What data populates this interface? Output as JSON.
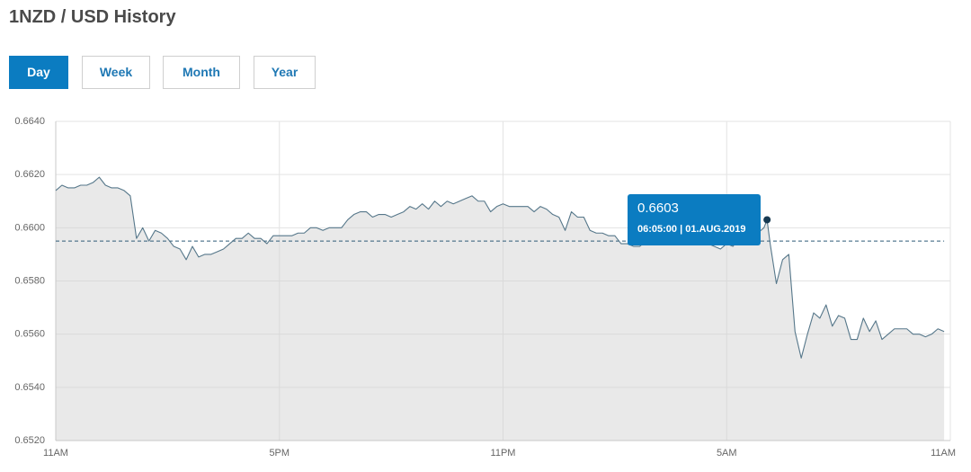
{
  "title": "1NZD / USD History",
  "tabs": [
    {
      "label": "Day",
      "active": true
    },
    {
      "label": "Week",
      "active": false
    },
    {
      "label": "Month",
      "active": false
    },
    {
      "label": "Year",
      "active": false
    }
  ],
  "colors": {
    "accent": "#0b7cc1",
    "tab_text": "#1f78b4",
    "line": "#56778a",
    "area": "#cfcfcf",
    "reference_line": "#2f5b78",
    "marker": "#173a52",
    "grid": "#e3e3e3",
    "axis": "#c9c9c9",
    "tick_text": "#666666"
  },
  "chart_data": {
    "type": "area",
    "grid": true,
    "ylim": [
      0.652,
      0.664
    ],
    "y_ticks": [
      {
        "value": 0.664,
        "label": "0.6640"
      },
      {
        "value": 0.662,
        "label": "0.6620"
      },
      {
        "value": 0.66,
        "label": "0.6600"
      },
      {
        "value": 0.658,
        "label": "0.6580"
      },
      {
        "value": 0.656,
        "label": "0.6560"
      },
      {
        "value": 0.654,
        "label": "0.6540"
      },
      {
        "value": 0.652,
        "label": "0.6520"
      }
    ],
    "x_ticks": [
      {
        "value": "11:00",
        "label": "11AM"
      },
      {
        "value": "17:00",
        "label": "5PM"
      },
      {
        "value": "23:00",
        "label": "11PM"
      },
      {
        "value": "05:00",
        "label": "5AM"
      },
      {
        "value": "11:00",
        "label": "11AM"
      }
    ],
    "x": [
      "11:00",
      "11:10",
      "11:20",
      "11:30",
      "11:40",
      "11:50",
      "12:00",
      "12:10",
      "12:20",
      "12:30",
      "12:40",
      "12:50",
      "13:00",
      "13:10",
      "13:20",
      "13:30",
      "13:40",
      "13:50",
      "14:00",
      "14:10",
      "14:20",
      "14:30",
      "14:40",
      "14:50",
      "15:00",
      "15:10",
      "15:20",
      "15:30",
      "15:40",
      "15:50",
      "16:00",
      "16:10",
      "16:20",
      "16:30",
      "16:40",
      "16:50",
      "17:00",
      "17:10",
      "17:20",
      "17:30",
      "17:40",
      "17:50",
      "18:00",
      "18:10",
      "18:20",
      "18:30",
      "18:40",
      "18:50",
      "19:00",
      "19:10",
      "19:20",
      "19:30",
      "19:40",
      "19:50",
      "20:00",
      "20:10",
      "20:20",
      "20:30",
      "20:40",
      "20:50",
      "21:00",
      "21:10",
      "21:20",
      "21:30",
      "21:40",
      "21:50",
      "22:00",
      "22:10",
      "22:20",
      "22:30",
      "22:40",
      "22:50",
      "23:00",
      "23:10",
      "23:20",
      "23:30",
      "23:40",
      "23:50",
      "00:00",
      "00:10",
      "00:20",
      "00:30",
      "00:40",
      "00:50",
      "01:00",
      "01:10",
      "01:20",
      "01:30",
      "01:40",
      "01:50",
      "02:00",
      "02:10",
      "02:20",
      "02:30",
      "02:40",
      "02:50",
      "03:00",
      "03:10",
      "03:20",
      "03:30",
      "03:40",
      "03:50",
      "04:00",
      "04:10",
      "04:20",
      "04:30",
      "04:40",
      "04:50",
      "05:00",
      "05:10",
      "05:20",
      "05:30",
      "05:40",
      "05:50",
      "06:00",
      "06:05",
      "06:10",
      "06:20",
      "06:30",
      "06:40",
      "06:50",
      "07:00",
      "07:10",
      "07:20",
      "07:30",
      "07:40",
      "07:50",
      "08:00",
      "08:10",
      "08:20",
      "08:30",
      "08:40",
      "08:50",
      "09:00",
      "09:10",
      "09:20",
      "09:30",
      "09:40",
      "09:50",
      "10:00",
      "10:10",
      "10:20",
      "10:30",
      "10:40",
      "10:50"
    ],
    "series": [
      {
        "values": [
          0.6614,
          0.6616,
          0.6615,
          0.6615,
          0.6616,
          0.6616,
          0.6617,
          0.6619,
          0.6616,
          0.6615,
          0.6615,
          0.6614,
          0.6612,
          0.6596,
          0.66,
          0.6595,
          0.6599,
          0.6598,
          0.6596,
          0.6593,
          0.6592,
          0.6588,
          0.6593,
          0.6589,
          0.659,
          0.659,
          0.6591,
          0.6592,
          0.6594,
          0.6596,
          0.6596,
          0.6598,
          0.6596,
          0.6596,
          0.6594,
          0.6597,
          0.6597,
          0.6597,
          0.6597,
          0.6598,
          0.6598,
          0.66,
          0.66,
          0.6599,
          0.66,
          0.66,
          0.66,
          0.6603,
          0.6605,
          0.6606,
          0.6606,
          0.6604,
          0.6605,
          0.6605,
          0.6604,
          0.6605,
          0.6606,
          0.6608,
          0.6607,
          0.6609,
          0.6607,
          0.661,
          0.6608,
          0.661,
          0.6609,
          0.661,
          0.6611,
          0.6612,
          0.661,
          0.661,
          0.6606,
          0.6608,
          0.6609,
          0.6608,
          0.6608,
          0.6608,
          0.6608,
          0.6606,
          0.6608,
          0.6607,
          0.6605,
          0.6604,
          0.6599,
          0.6606,
          0.6604,
          0.6604,
          0.6599,
          0.6598,
          0.6598,
          0.6597,
          0.6597,
          0.6594,
          0.6594,
          0.6593,
          0.6593,
          0.6595,
          0.6596,
          0.6595,
          0.6596,
          0.6596,
          0.6595,
          0.6596,
          0.6595,
          0.6596,
          0.6595,
          0.6594,
          0.6593,
          0.6592,
          0.6594,
          0.6593,
          0.6596,
          0.6597,
          0.6597,
          0.6598,
          0.66,
          0.6603,
          0.6594,
          0.6579,
          0.6588,
          0.659,
          0.6561,
          0.6551,
          0.656,
          0.6568,
          0.6566,
          0.6571,
          0.6563,
          0.6567,
          0.6566,
          0.6558,
          0.6558,
          0.6566,
          0.6561,
          0.6565,
          0.6558,
          0.656,
          0.6562,
          0.6562,
          0.6562,
          0.656,
          0.656,
          0.6559,
          0.656,
          0.6562,
          0.6561
        ]
      }
    ],
    "reference_line": 0.6595,
    "highlight": {
      "x": "06:05",
      "y": 0.6603
    },
    "tooltip": {
      "value": "0.6603",
      "timestamp": "06:05:00 | 01.AUG.2019"
    }
  }
}
